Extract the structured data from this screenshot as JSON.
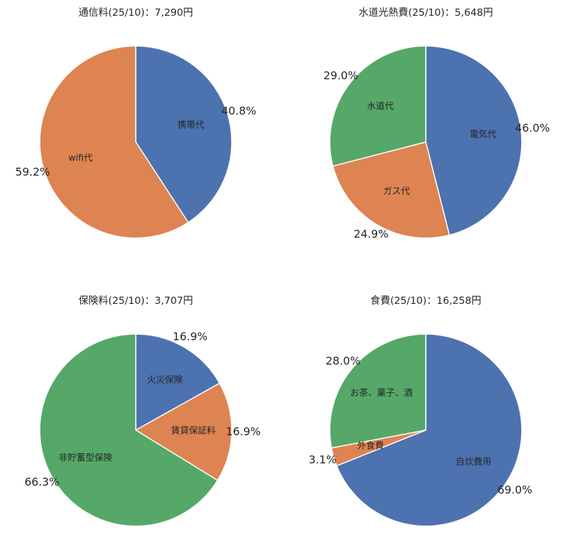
{
  "chart_data": [
    {
      "type": "pie",
      "title": "通信料(25/10)：7,290円",
      "start_angle_deg": 90,
      "direction": "clockwise",
      "labels": [
        "携帯代",
        "wifi代"
      ],
      "values": [
        40.8,
        59.2
      ],
      "percent_labels": [
        "40.8%",
        "59.2%"
      ],
      "colors": [
        "#4c72b0",
        "#dd8452"
      ]
    },
    {
      "type": "pie",
      "title": "水道光熱費(25/10)：5,648円",
      "start_angle_deg": 90,
      "direction": "clockwise",
      "labels": [
        "電気代",
        "ガス代",
        "水道代"
      ],
      "values": [
        46.0,
        24.9,
        29.0
      ],
      "percent_labels": [
        "46.0%",
        "24.9%",
        "29.0%"
      ],
      "colors": [
        "#4c72b0",
        "#dd8452",
        "#55a868"
      ]
    },
    {
      "type": "pie",
      "title": "保険料(25/10)：3,707円",
      "start_angle_deg": 90,
      "direction": "clockwise",
      "labels": [
        "火災保険",
        "賃貸保証料",
        "非貯蓄型保険"
      ],
      "values": [
        16.9,
        16.9,
        66.3
      ],
      "percent_labels": [
        "16.9%",
        "16.9%",
        "66.3%"
      ],
      "colors": [
        "#4c72b0",
        "#dd8452",
        "#55a868"
      ]
    },
    {
      "type": "pie",
      "title": "食費(25/10)：16,258円",
      "start_angle_deg": 90,
      "direction": "clockwise",
      "labels": [
        "自炊費用",
        "外食費",
        "お茶、菓子、酒"
      ],
      "values": [
        69.0,
        3.1,
        28.0
      ],
      "percent_labels": [
        "69.0%",
        "3.1%",
        "28.0%"
      ],
      "colors": [
        "#4c72b0",
        "#dd8452",
        "#55a868"
      ]
    }
  ]
}
